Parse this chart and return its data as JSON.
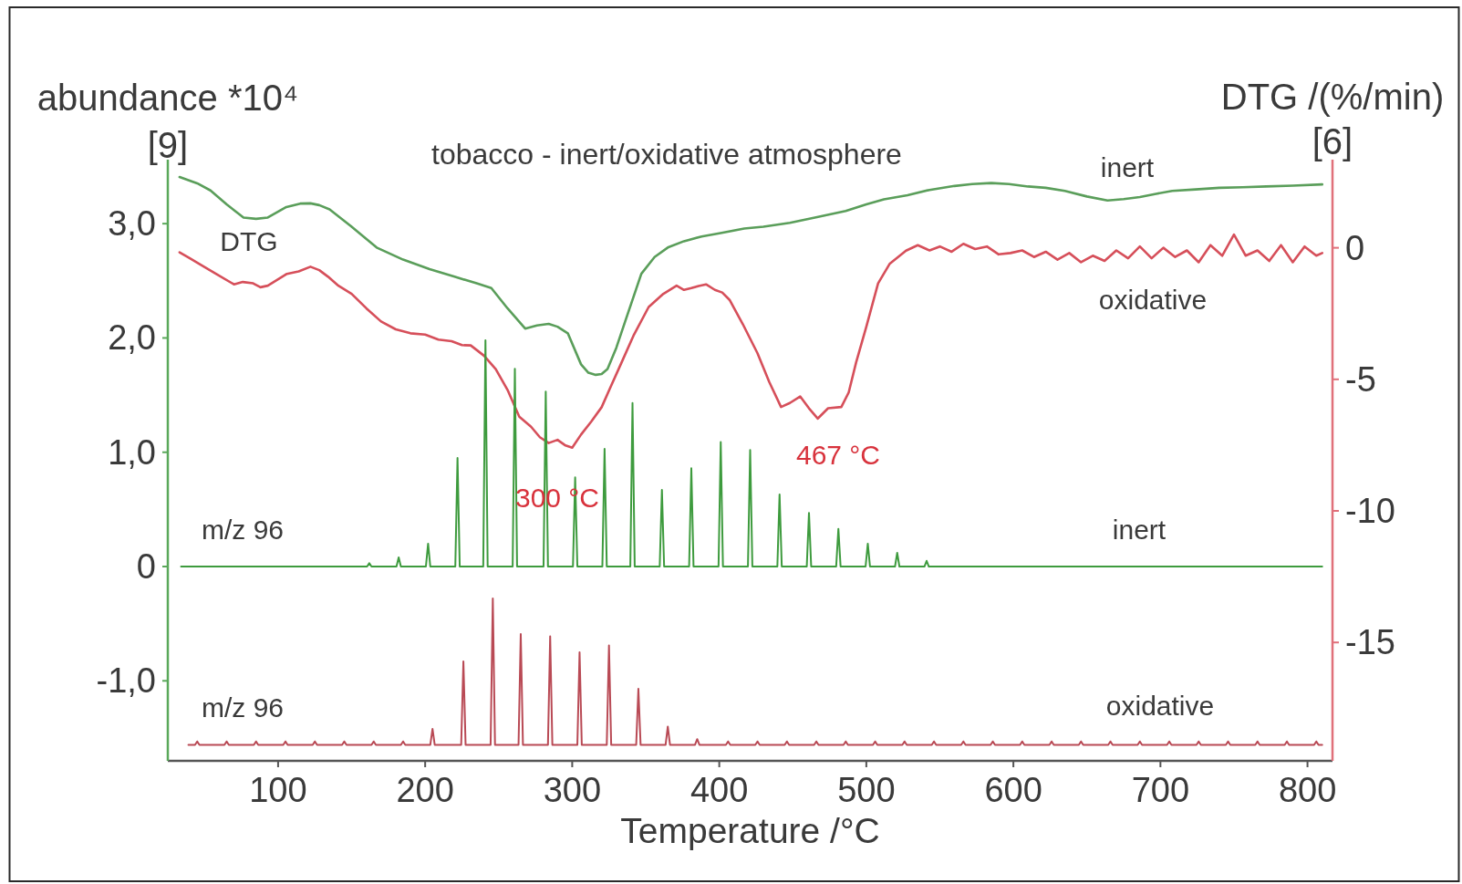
{
  "chart_data": {
    "type": "line",
    "title": "tobacco - inert/oxidative atmosphere",
    "xlabel": "Temperature /°C",
    "ylabel": "abundance *10⁴",
    "y2label": "DTG /(%/min)",
    "annotations": [
      "[9]",
      "[6]",
      "DTG",
      "m/z 96",
      "m/z 96",
      "300 °C",
      "467 °C"
    ],
    "xlim": [
      25,
      817
    ],
    "xticks": [
      100,
      200,
      300,
      400,
      500,
      600,
      700,
      800
    ],
    "ylim": [
      -1.7,
      3.56
    ],
    "yticks": [
      {
        "value": -1,
        "label": "-1,0"
      },
      0,
      {
        "value": 1,
        "label": "1,0"
      },
      {
        "value": 2,
        "label": "2,0"
      },
      {
        "value": 3,
        "label": "3,0"
      }
    ],
    "y2lim": [
      -19.5,
      3.35
    ],
    "y2ticks": [
      -15,
      -10,
      -5,
      0
    ],
    "series": [
      {
        "name": "inert",
        "color": "#5a9e5a",
        "axis": "y2",
        "x": [
          33,
          45,
          54,
          65,
          76.5,
          85,
          93,
          105.6,
          115,
          122,
          128,
          135,
          150,
          167,
          185,
          203,
          220,
          235,
          245,
          256,
          268,
          276,
          284,
          290,
          297,
          306,
          311,
          316,
          320,
          324,
          330,
          336,
          347,
          356,
          365,
          376,
          388,
          400,
          417,
          430,
          448,
          465,
          486,
          500,
          512,
          528,
          543,
          560,
          572,
          585,
          597,
          610,
          622,
          635,
          650,
          664,
          675,
          686,
          697,
          708,
          724,
          740,
          756,
          772,
          790,
          810
        ],
        "values": [
          2.69,
          2.45,
          2.18,
          1.65,
          1.15,
          1.1,
          1.15,
          1.55,
          1.68,
          1.69,
          1.62,
          1.46,
          0.8,
          0.01,
          -0.45,
          -0.81,
          -1.1,
          -1.35,
          -1.53,
          -2.3,
          -3.07,
          -2.95,
          -2.89,
          -3.0,
          -3.25,
          -4.43,
          -4.75,
          -4.83,
          -4.8,
          -4.61,
          -3.8,
          -2.8,
          -0.99,
          -0.35,
          0.01,
          0.25,
          0.43,
          0.55,
          0.73,
          0.8,
          0.95,
          1.15,
          1.4,
          1.65,
          1.84,
          2.0,
          2.2,
          2.35,
          2.42,
          2.46,
          2.42,
          2.33,
          2.28,
          2.16,
          1.95,
          1.8,
          1.85,
          1.93,
          2.05,
          2.16,
          2.22,
          2.28,
          2.3,
          2.33,
          2.36,
          2.41
        ]
      },
      {
        "name": "oxidative",
        "color": "#d64f5a",
        "axis": "y2",
        "x": [
          33,
          40,
          47,
          58,
          70,
          76,
          83,
          88,
          93,
          100,
          106,
          114,
          122,
          128,
          134,
          141,
          150,
          160,
          170,
          180,
          190,
          200,
          209,
          218,
          225,
          231,
          240,
          248,
          256,
          264,
          272,
          278,
          284,
          290,
          295,
          300,
          306,
          313,
          320,
          326,
          333,
          342,
          352,
          362,
          371,
          376,
          381,
          386,
          391,
          397,
          402,
          407,
          416,
          426,
          434,
          442,
          448,
          455,
          461,
          467,
          474,
          483,
          488,
          493,
          500,
          508,
          516,
          527,
          535,
          543,
          550,
          558,
          566,
          574,
          582,
          590,
          598,
          606,
          614,
          622,
          630,
          638,
          646,
          654,
          662,
          670,
          678,
          686,
          694,
          702,
          710,
          718,
          726,
          734,
          742,
          750,
          758,
          766,
          774,
          782,
          790,
          798,
          806,
          810
        ],
        "values": [
          -0.17,
          -0.4,
          -0.63,
          -1.0,
          -1.39,
          -1.3,
          -1.35,
          -1.5,
          -1.44,
          -1.2,
          -0.99,
          -0.9,
          -0.72,
          -0.85,
          -1.1,
          -1.44,
          -1.75,
          -2.3,
          -2.8,
          -3.1,
          -3.25,
          -3.3,
          -3.49,
          -3.55,
          -3.7,
          -3.71,
          -4.1,
          -4.61,
          -5.4,
          -6.42,
          -6.8,
          -7.2,
          -7.42,
          -7.3,
          -7.5,
          -7.6,
          -7.1,
          -6.6,
          -6.06,
          -5.3,
          -4.43,
          -3.3,
          -2.25,
          -1.75,
          -1.44,
          -1.6,
          -1.53,
          -1.45,
          -1.39,
          -1.6,
          -1.7,
          -1.98,
          -2.9,
          -4.01,
          -5.1,
          -6.05,
          -5.9,
          -5.65,
          -6.1,
          -6.49,
          -6.1,
          -6.05,
          -5.5,
          -4.37,
          -3.0,
          -1.35,
          -0.6,
          -0.11,
          0.1,
          -0.1,
          0.05,
          -0.15,
          0.15,
          -0.05,
          0.05,
          -0.25,
          -0.2,
          -0.1,
          -0.35,
          -0.15,
          -0.45,
          -0.2,
          -0.55,
          -0.3,
          -0.5,
          -0.1,
          -0.4,
          0.05,
          -0.4,
          0.0,
          -0.35,
          -0.1,
          -0.55,
          0.1,
          -0.3,
          0.5,
          -0.3,
          -0.1,
          -0.5,
          0.1,
          -0.55,
          0.05,
          -0.3,
          -0.2
        ]
      },
      {
        "name": "inert",
        "color": "#3e9b3e",
        "x": [
          34,
          160.5,
          162,
          163.5,
          180.5,
          182,
          183.5,
          200.5,
          202,
          203.5,
          220.5,
          222,
          223.5,
          239.5,
          241,
          242.5,
          259.5,
          261,
          262.5,
          280.5,
          282,
          283.5,
          300.5,
          302,
          303.5,
          320.5,
          322,
          323.5,
          339.5,
          341,
          342.5,
          359.5,
          361,
          362.5,
          379.5,
          381,
          382.5,
          399.5,
          401,
          402.5,
          419.5,
          421,
          422.5,
          439.5,
          441,
          442.5,
          459.5,
          461,
          462.5,
          479.5,
          481,
          482.5,
          499.5,
          501,
          502.5,
          519.5,
          521,
          522.5,
          539.5,
          541,
          542.5,
          810
        ],
        "values": [
          0,
          0,
          0.03,
          0,
          0,
          0.08,
          0,
          0,
          0.2,
          0,
          0,
          0.95,
          0,
          0,
          1.98,
          0,
          0,
          1.73,
          0,
          0,
          1.53,
          0,
          0,
          0.78,
          0,
          0,
          1.03,
          0,
          0,
          1.43,
          0,
          0,
          0.67,
          0,
          0,
          0.86,
          0,
          0,
          1.09,
          0,
          0,
          1.02,
          0,
          0,
          0.63,
          0,
          0,
          0.47,
          0,
          0,
          0.33,
          0,
          0,
          0.2,
          0,
          0,
          0.12,
          0,
          0,
          0.05,
          0,
          0
        ]
      },
      {
        "name": "oxidative",
        "color": "#b94a55",
        "x": [
          39,
          43.5,
          45,
          46.5,
          63.5,
          65,
          66.5,
          83.5,
          85,
          86.5,
          103.5,
          105,
          106.5,
          123.5,
          125,
          126.5,
          143.5,
          145,
          146.5,
          163.5,
          165,
          166.5,
          183.5,
          185,
          186.5,
          203.5,
          205,
          206.5,
          224.5,
          226,
          227.5,
          244.5,
          246,
          247.5,
          263.5,
          265,
          266.5,
          283.5,
          285,
          286.5,
          303.5,
          305,
          306.5,
          323.5,
          325,
          326.5,
          343.5,
          345,
          346.5,
          363.5,
          365,
          366.5,
          383.5,
          385,
          386.5,
          404.5,
          406,
          407.5,
          424.5,
          426,
          427.5,
          444.5,
          446,
          447.5,
          464.5,
          466,
          467.5,
          484.5,
          486,
          487.5,
          504.5,
          506,
          507.5,
          524.5,
          526,
          527.5,
          544.5,
          546,
          547.5,
          564.5,
          566,
          567.5,
          584.5,
          586,
          587.5,
          604.5,
          606,
          607.5,
          624.5,
          626,
          627.5,
          644.5,
          646,
          647.5,
          664.5,
          666,
          667.5,
          684.5,
          686,
          687.5,
          704.5,
          706,
          707.5,
          724.5,
          726,
          727.5,
          744.5,
          746,
          747.5,
          764.5,
          766,
          767.5,
          784.5,
          786,
          787.5,
          804.5,
          806,
          807.5,
          810
        ],
        "values": [
          -1.56,
          -1.56,
          -1.53,
          -1.56,
          -1.56,
          -1.53,
          -1.56,
          -1.56,
          -1.53,
          -1.56,
          -1.56,
          -1.53,
          -1.56,
          -1.56,
          -1.53,
          -1.56,
          -1.56,
          -1.53,
          -1.56,
          -1.56,
          -1.53,
          -1.56,
          -1.56,
          -1.53,
          -1.56,
          -1.56,
          -1.42,
          -1.56,
          -1.56,
          -0.83,
          -1.56,
          -1.56,
          -0.28,
          -1.56,
          -1.56,
          -0.59,
          -1.56,
          -1.56,
          -0.61,
          -1.56,
          -1.56,
          -0.75,
          -1.56,
          -1.56,
          -0.69,
          -1.56,
          -1.56,
          -1.07,
          -1.56,
          -1.56,
          -1.4,
          -1.56,
          -1.56,
          -1.51,
          -1.56,
          -1.56,
          -1.53,
          -1.56,
          -1.56,
          -1.53,
          -1.56,
          -1.56,
          -1.53,
          -1.56,
          -1.56,
          -1.53,
          -1.56,
          -1.56,
          -1.53,
          -1.56,
          -1.56,
          -1.53,
          -1.56,
          -1.56,
          -1.53,
          -1.56,
          -1.56,
          -1.53,
          -1.56,
          -1.56,
          -1.53,
          -1.56,
          -1.56,
          -1.53,
          -1.56,
          -1.56,
          -1.53,
          -1.56,
          -1.56,
          -1.53,
          -1.56,
          -1.56,
          -1.53,
          -1.56,
          -1.56,
          -1.53,
          -1.56,
          -1.56,
          -1.53,
          -1.56,
          -1.56,
          -1.53,
          -1.56,
          -1.56,
          -1.53,
          -1.56,
          -1.56,
          -1.53,
          -1.56,
          -1.56,
          -1.53,
          -1.56,
          -1.56,
          -1.53,
          -1.56,
          -1.56,
          -1.53,
          -1.56,
          -1.56
        ]
      }
    ]
  }
}
